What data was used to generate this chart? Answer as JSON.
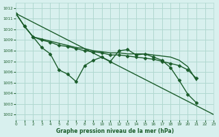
{
  "title": "Graphe pression niveau de la mer (hPa)",
  "bg_color": "#d8f0ee",
  "grid_color": "#b0d8d0",
  "line_color": "#1a5c2a",
  "xlim": [
    0,
    23
  ],
  "ylim": [
    1001.5,
    1012.5
  ],
  "yticks": [
    1002,
    1003,
    1004,
    1005,
    1006,
    1007,
    1008,
    1009,
    1010,
    1011,
    1012
  ],
  "xticks": [
    0,
    1,
    2,
    3,
    4,
    5,
    6,
    7,
    8,
    9,
    10,
    11,
    12,
    13,
    14,
    15,
    16,
    17,
    18,
    19,
    20,
    21,
    22,
    23
  ],
  "series": [
    {
      "x": [
        0,
        23
      ],
      "y": [
        1011.5,
        1002.0
      ],
      "marker": false,
      "linewidth": 1.0
    },
    {
      "x": [
        0,
        1,
        2,
        3,
        4,
        5,
        6,
        7,
        8,
        9,
        10,
        11,
        12,
        13,
        14,
        15,
        16,
        17,
        18,
        19,
        20,
        21
      ],
      "y": [
        1011.5,
        1010.3,
        1009.3,
        1008.3,
        1007.7,
        1006.2,
        1005.8,
        1005.1,
        1006.6,
        1007.1,
        1007.4,
        1007.0,
        1008.0,
        1008.1,
        1007.6,
        1007.7,
        1007.4,
        1007.1,
        1006.4,
        1005.2,
        1003.9,
        1003.1
      ],
      "marker": true,
      "linewidth": 1.0
    },
    {
      "x": [
        0,
        1,
        2,
        3,
        4,
        5,
        6,
        7,
        8,
        9,
        10,
        11,
        12,
        13,
        14,
        15,
        16,
        17,
        18,
        19,
        20,
        21
      ],
      "y": [
        1011.5,
        1010.3,
        1009.3,
        1009.1,
        1008.9,
        1008.7,
        1008.5,
        1008.3,
        1008.2,
        1008.0,
        1007.9,
        1007.8,
        1007.8,
        1007.7,
        1007.7,
        1007.7,
        1007.6,
        1007.5,
        1007.4,
        1007.1,
        1006.5,
        1005.2
      ],
      "marker": false,
      "linewidth": 1.0
    },
    {
      "x": [
        0,
        1,
        2,
        3,
        4,
        5,
        6,
        7,
        8,
        9,
        10,
        11,
        12,
        13,
        14,
        15,
        16,
        17,
        18,
        19,
        20,
        21
      ],
      "y": [
        1011.5,
        1010.3,
        1009.3,
        1009.0,
        1008.8,
        1008.5,
        1008.4,
        1008.2,
        1008.0,
        1007.9,
        1007.8,
        1007.6,
        1007.6,
        1007.5,
        1007.4,
        1007.3,
        1007.2,
        1007.0,
        1006.8,
        1006.6,
        1006.2,
        1005.4
      ],
      "marker": true,
      "linewidth": 1.0
    }
  ]
}
